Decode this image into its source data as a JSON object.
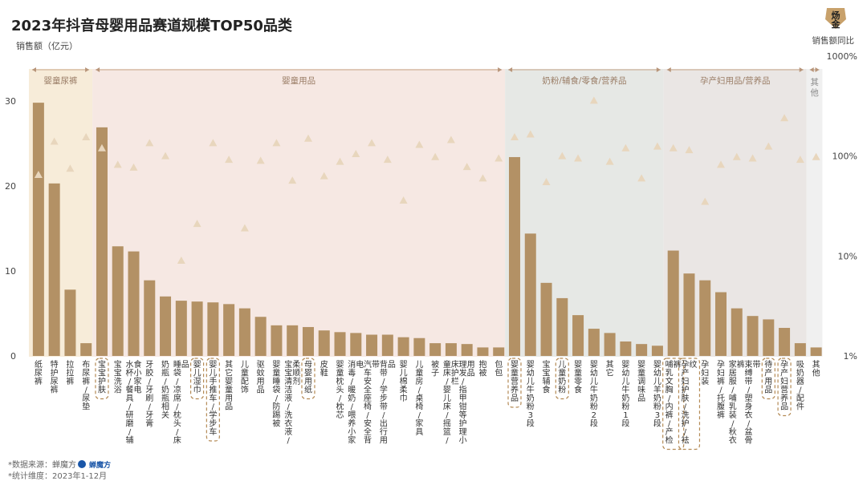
{
  "header": {
    "title": "2023年抖音母婴用品赛道规模TOP50品类",
    "ylabel": "销售额（亿元）",
    "y2label": "销售额同比",
    "logo_text": "炀金"
  },
  "footer": {
    "source": "*数据来源：蝉魔方",
    "source_brand": "蝉魔方",
    "period": "*统计维度：2023年1-12月"
  },
  "colors": {
    "bar": "#b39165",
    "triangle": "#e8d6bd",
    "highlight_box": "#b48a55",
    "groups": [
      "#f7ecd9",
      "#f6e8e3",
      "#e6e8e5",
      "#eae6e4",
      "#f0f0f0"
    ]
  },
  "chart_data": {
    "type": "bar",
    "y_axis": {
      "ylim": [
        0,
        32
      ],
      "ticks": [
        0,
        10,
        20,
        30
      ]
    },
    "y2_axis": {
      "scale": "log",
      "ticks": [
        "1%",
        "10%",
        "100%",
        "1000%"
      ],
      "values": [
        1,
        10,
        100,
        1000
      ]
    },
    "groups": [
      {
        "name": "婴童尿裤",
        "start": 0,
        "end": 3
      },
      {
        "name": "婴童用品",
        "start": 4,
        "end": 29
      },
      {
        "name": "奶粉/辅食/零食/营养品",
        "start": 30,
        "end": 39
      },
      {
        "name": "孕产妇用品/营养品",
        "start": 40,
        "end": 48
      },
      {
        "name": "其他",
        "start": 49,
        "end": 49
      }
    ],
    "categories": [
      "纸尿裤",
      "特护尿裤",
      "拉拉裤",
      "布尿裤/尿垫",
      "宝宝护肤",
      "宝宝洗浴",
      "水杯/餐具/研磨/辅食小家电",
      "牙胶/牙刷/牙膏",
      "奶瓶/奶瓶相关",
      "睡袋/凉席/枕头/床品",
      "婴儿湿巾",
      "婴儿手推车/学步车",
      "其它婴童用品",
      "儿童配饰",
      "驱蚊用品",
      "婴童睡袋/防踢被",
      "宝宝清洁液/洗衣液/柔顺剂",
      "母婴用纸",
      "皮鞋",
      "婴童枕头/枕芯",
      "消毒/暖奶/喂养小家电",
      "汽车安全座椅/安全背带",
      "背带/学步带/出行用品",
      "婴儿棉柔巾",
      "儿童房/桌椅/家具",
      "被子",
      "童床/婴儿床/摇篮/床护栏",
      "理发/指甲钳等护理小用品",
      "抱被",
      "包包",
      "婴童营养品",
      "婴幼儿牛奶粉3段",
      "宝宝辅食",
      "儿童奶粉",
      "婴童零食",
      "婴幼儿牛奶粉2段",
      "其它",
      "婴幼儿牛奶粉1段",
      "婴童调味品",
      "婴幼儿羊奶粉3段",
      "哺乳文胸/内裤/产检裤",
      "孕产妇护肤/洗护/祛纹",
      "孕妇装",
      "孕妇裤/托腹裤",
      "家居服/哺乳装/秋衣裤",
      "束缚带/塑身衣/盆骨带",
      "待产用品",
      "孕产妇营养品",
      "吸奶器/配件",
      "其他"
    ],
    "series": [
      {
        "name": "销售额",
        "axis": "left",
        "values": [
          29.8,
          20.3,
          7.8,
          1.5,
          26.9,
          12.9,
          12.3,
          8.9,
          7.0,
          6.5,
          6.4,
          6.3,
          6.1,
          5.6,
          4.6,
          3.6,
          3.6,
          3.4,
          3.0,
          2.8,
          2.7,
          2.5,
          2.5,
          2.2,
          2.1,
          1.5,
          1.5,
          1.4,
          1.0,
          1.0,
          23.4,
          14.4,
          8.6,
          6.8,
          4.8,
          3.2,
          2.7,
          1.7,
          1.4,
          1.2,
          12.4,
          9.7,
          8.9,
          7.5,
          5.6,
          4.7,
          4.3,
          3.3,
          1.5,
          1.0
        ]
      },
      {
        "name": "销售额同比",
        "axis": "right",
        "values": [
          65,
          140,
          75,
          155,
          120,
          82,
          77,
          135,
          100,
          9,
          21,
          135,
          92,
          19,
          90,
          135,
          57,
          150,
          63,
          88,
          105,
          135,
          92,
          36,
          130,
          98,
          145,
          78,
          60,
          95,
          155,
          165,
          55,
          100,
          95,
          360,
          88,
          120,
          60,
          125,
          120,
          115,
          35,
          82,
          98,
          95,
          125,
          240,
          92,
          98
        ]
      }
    ],
    "highlighted_categories": [
      "宝宝护肤",
      "婴儿湿巾",
      "婴儿手推车/学步车",
      "母婴用纸",
      "婴童营养品",
      "儿童奶粉",
      "哺乳文胸/内裤/产检裤",
      "孕产妇护肤/洗护/祛纹",
      "待产用品",
      "孕产妇营养品"
    ]
  }
}
